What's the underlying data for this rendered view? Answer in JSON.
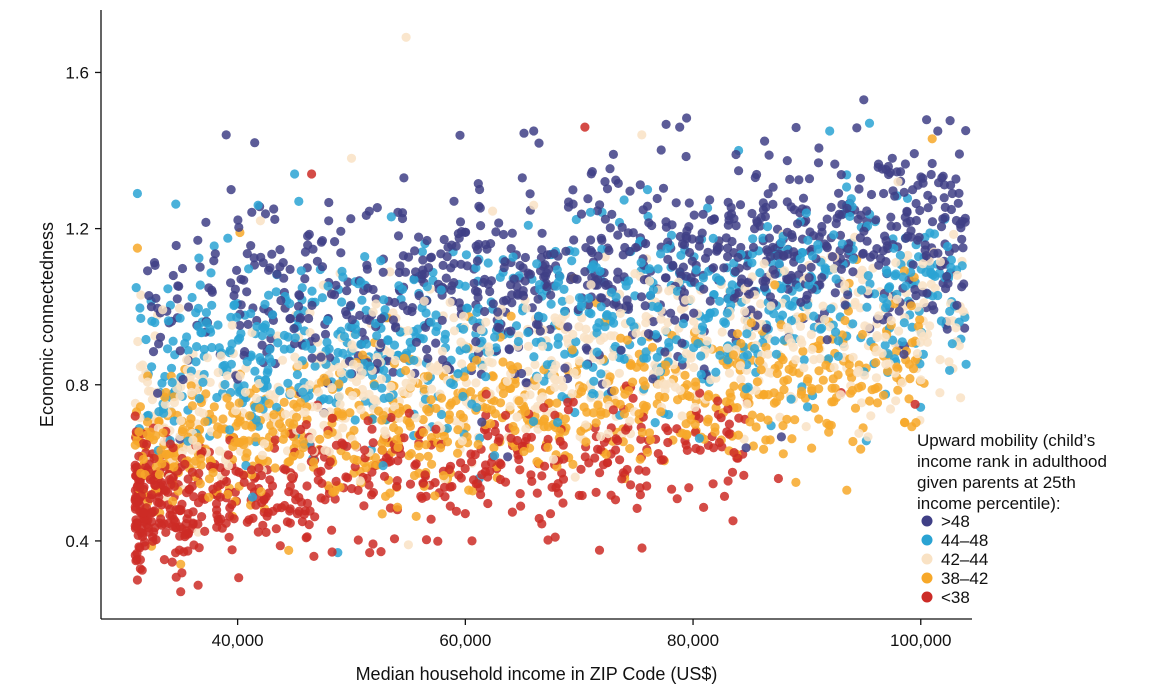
{
  "chart_data": {
    "type": "scatter",
    "title": "",
    "xlabel": "Median household income in ZIP Code (US$)",
    "ylabel": "Economic connectedness",
    "xlim": [
      28000,
      104500
    ],
    "ylim": [
      0.2,
      1.76
    ],
    "x_ticks": [
      40000,
      60000,
      80000,
      100000
    ],
    "x_tick_labels": [
      "40,000",
      "60,000",
      "80,000",
      "100,000"
    ],
    "y_ticks": [
      0.4,
      0.8,
      1.2,
      1.6
    ],
    "y_tick_labels": [
      "0.4",
      "0.8",
      "1.2",
      "1.6"
    ],
    "grid": false,
    "legend": {
      "position": "right",
      "title_lines": [
        "Upward mobility (child’s",
        "income rank in adulthood",
        "given parents at 25th",
        "income percentile):"
      ]
    },
    "series": [
      {
        "name": ">48",
        "color": "#3f3f86",
        "trend": {
          "start": [
            31000,
            0.98
          ],
          "end": [
            104000,
            1.2
          ]
        },
        "spread": 0.12,
        "values": [
          [
            39000,
            1.44
          ],
          [
            41500,
            1.42
          ],
          [
            54600,
            1.33
          ],
          [
            65000,
            1.33
          ],
          [
            66000,
            1.45
          ],
          [
            73000,
            1.39
          ],
          [
            95000,
            1.53
          ],
          [
            97500,
            1.38
          ],
          [
            101500,
            1.45
          ],
          [
            36500,
            1.17
          ],
          [
            48000,
            1.22
          ],
          [
            59000,
            1.27
          ]
        ]
      },
      {
        "name": "44–48",
        "color": "#2aa3d3",
        "trend": {
          "start": [
            31000,
            0.84
          ],
          "end": [
            104000,
            1.07
          ]
        },
        "spread": 0.12,
        "values": [
          [
            31200,
            1.29
          ],
          [
            41800,
            1.26
          ],
          [
            45000,
            1.34
          ],
          [
            76000,
            1.3
          ],
          [
            84000,
            1.4
          ],
          [
            92000,
            1.45
          ],
          [
            95500,
            1.47
          ],
          [
            48800,
            0.37
          ],
          [
            31500,
            0.97
          ],
          [
            53500,
            1.23
          ]
        ]
      },
      {
        "name": "42–44",
        "color": "#f9e2c4",
        "trend": {
          "start": [
            31000,
            0.72
          ],
          "end": [
            104000,
            0.98
          ]
        },
        "spread": 0.11,
        "values": [
          [
            54800,
            1.69
          ],
          [
            50000,
            1.38
          ],
          [
            75500,
            1.44
          ],
          [
            31500,
            1.03
          ],
          [
            42000,
            1.22
          ],
          [
            66000,
            1.26
          ],
          [
            98000,
            1.32
          ],
          [
            55000,
            0.39
          ]
        ]
      },
      {
        "name": "38–42",
        "color": "#f7a829",
        "trend": {
          "start": [
            31000,
            0.62
          ],
          "end": [
            104000,
            0.86
          ]
        },
        "spread": 0.09,
        "values": [
          [
            93500,
            0.53
          ],
          [
            101000,
            1.43
          ],
          [
            31200,
            1.15
          ],
          [
            40200,
            1.19
          ],
          [
            96000,
            0.79
          ],
          [
            74000,
            0.56
          ],
          [
            35000,
            0.34
          ]
        ]
      },
      {
        "name": "<38",
        "color": "#cc2b26",
        "trend": {
          "start": [
            31000,
            0.49
          ],
          "end": [
            104000,
            0.72
          ]
        },
        "spread": 0.08,
        "values": [
          [
            35000,
            0.27
          ],
          [
            31200,
            0.3
          ],
          [
            70500,
            1.46
          ],
          [
            46500,
            1.34
          ],
          [
            74000,
            0.57
          ],
          [
            87500,
            0.56
          ],
          [
            93000,
            0.78
          ],
          [
            99500,
            0.75
          ],
          [
            31000,
            0.72
          ],
          [
            60000,
            0.47
          ]
        ]
      }
    ]
  }
}
